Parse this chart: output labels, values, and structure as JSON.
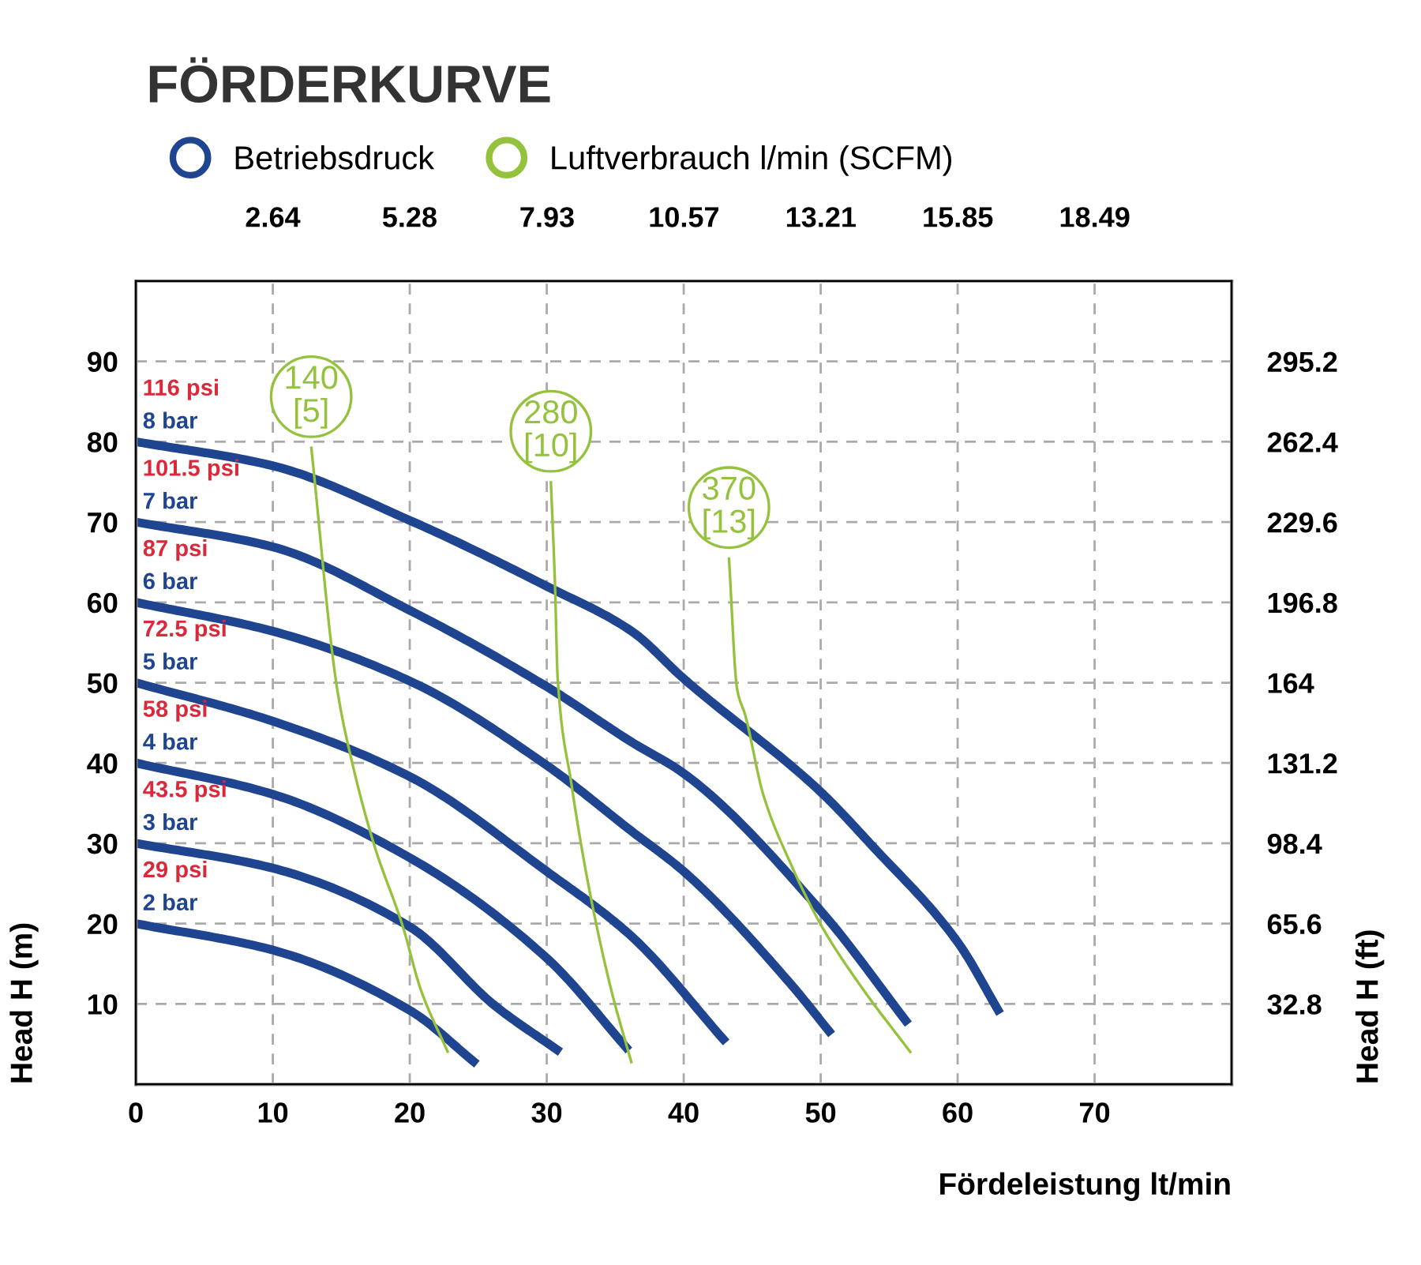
{
  "chart_data": {
    "type": "line",
    "title": "FÖRDERKURVE",
    "xlabel": "Fördeleistung lt/min",
    "ylabel": "Head H (m)",
    "y2label": "Head H (ft)",
    "xlim": [
      0,
      80
    ],
    "xticks": [
      0,
      10,
      20,
      30,
      40,
      50,
      60,
      70
    ],
    "ylim": [
      0,
      100
    ],
    "yticks": [
      10,
      20,
      30,
      40,
      50,
      60,
      70,
      80,
      90
    ],
    "x2lim": [
      0,
      21.13
    ],
    "x2ticks": [
      2.64,
      5.28,
      7.93,
      10.57,
      13.21,
      15.85,
      18.49
    ],
    "y2lim": [
      0,
      328
    ],
    "y2ticks": [
      32.8,
      65.6,
      98.4,
      131.2,
      164,
      196.8,
      229.6,
      262.4,
      295.2
    ],
    "grid": true,
    "legend": "top left",
    "line_style": "solid",
    "series": [
      {
        "name": "Betriebsdruck",
        "color": "#1f4591",
        "x": [
          0,
          10,
          20,
          30,
          36.2,
          40,
          50,
          53.7,
          60,
          63.1
        ],
        "values": [
          80,
          77,
          70.2,
          62,
          56.4,
          50.5,
          36.4,
          29.8,
          17.7,
          8.8
        ]
      },
      {
        "color": "#1f4591",
        "x": [
          0,
          10,
          20,
          30,
          36.2,
          40,
          50,
          56.4
        ],
        "values": [
          70,
          66.9,
          59,
          49.5,
          42.6,
          38.7,
          21.6,
          7.5
        ]
      },
      {
        "color": "#1f4591",
        "x": [
          0,
          10,
          20,
          30,
          36.2,
          40,
          47.8,
          50.8
        ],
        "values": [
          60,
          56.4,
          50.2,
          39.7,
          31.5,
          26.5,
          12.5,
          6.2
        ]
      },
      {
        "color": "#1f4591",
        "x": [
          0,
          10,
          20,
          30,
          36.2,
          43.1
        ],
        "values": [
          50,
          45.2,
          38.3,
          26.5,
          18.4,
          5.2
        ]
      },
      {
        "color": "#1f4591",
        "x": [
          0,
          10,
          20,
          30,
          36.0
        ],
        "values": [
          40,
          36.1,
          28.2,
          15.7,
          4.2
        ]
      },
      {
        "color": "#1f4591",
        "x": [
          0,
          10,
          20,
          26.2,
          31.0
        ],
        "values": [
          30,
          26.9,
          19.6,
          9.8,
          4.0
        ]
      },
      {
        "color": "#1f4591",
        "x": [
          0,
          10,
          20,
          24.9
        ],
        "values": [
          20,
          16.7,
          9.2,
          2.5
        ]
      },
      {
        "name": "Luftverbrauch l/min (SCFM)",
        "color": "#95c23d",
        "x": [
          12.8,
          14.7,
          15.8,
          17.4,
          19.5,
          20.8,
          22.8
        ],
        "values": [
          79.4,
          49.2,
          40,
          29.8,
          19.6,
          11.8,
          3.9
        ]
      },
      {
        "color": "#95c23d",
        "x": [
          30.3,
          30.6,
          30.8,
          31.8,
          33.1,
          34.7,
          36.2
        ],
        "values": [
          75.1,
          62.3,
          50.5,
          37.4,
          24.3,
          11.8,
          2.6
        ]
      },
      {
        "color": "#95c23d",
        "x": [
          43.3,
          43.9,
          44.5,
          45.8,
          47.8,
          50.1,
          53.1,
          56.6
        ],
        "values": [
          65.6,
          49.2,
          45.9,
          36.1,
          27.5,
          19.6,
          11.8,
          3.9
        ]
      }
    ],
    "annotations": [
      "140\n[5]",
      "280\n[10]",
      "370\n[13]",
      "116 psi",
      "8 bar",
      "101.5 psi",
      "7 bar",
      "87 psi",
      "6 bar",
      "72.5 psi",
      "5 bar",
      "58 psi",
      "4 bar",
      "43.5 psi",
      "3 bar",
      "29 psi",
      "2 bar"
    ]
  }
}
